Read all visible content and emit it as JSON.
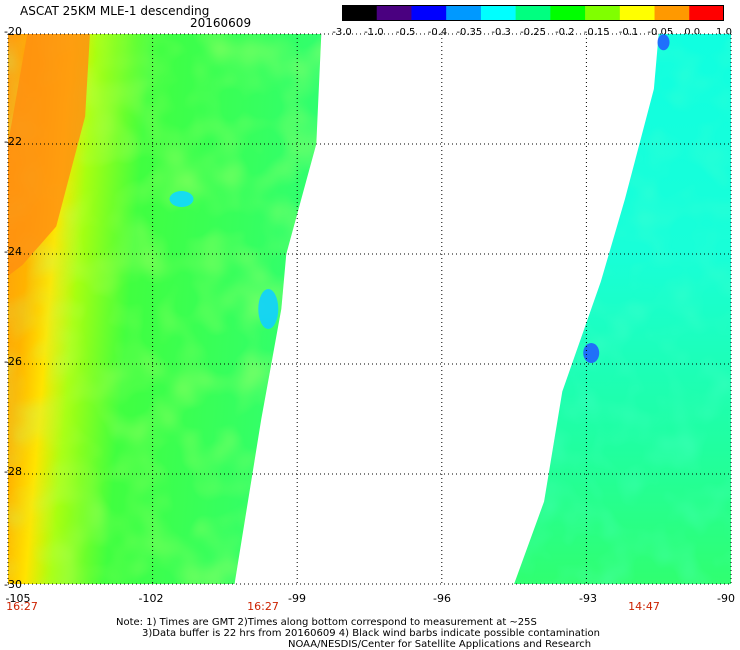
{
  "header": {
    "title": "ASCAT 25KM MLE-1 descending",
    "date": "20160609"
  },
  "colorbar": {
    "tick_labels": [
      "-3.0",
      "-1.0",
      "-0.5",
      "-0.4",
      "-0.35",
      "-0.3",
      "-0.25",
      "-0.2",
      "-0.15",
      "-0.1",
      "-0.05",
      "0.0",
      "1.0"
    ],
    "colors": [
      "#000000",
      "#4a0080",
      "#0000ff",
      "#0099ff",
      "#00ffff",
      "#00ff80",
      "#00ff00",
      "#80ff00",
      "#ffff00",
      "#ff9900",
      "#ff0000"
    ]
  },
  "map": {
    "lat_labels": [
      "-20",
      "-22",
      "-24",
      "-26",
      "-28",
      "-30"
    ],
    "lon_labels": [
      "-105",
      "-102",
      "-99",
      "-96",
      "-93",
      "-90"
    ],
    "lat_range": [
      -30,
      -20
    ],
    "lon_range": [
      -105,
      -90
    ],
    "time_labels": [
      "16:27",
      "16:27",
      "14:47"
    ],
    "swaths": [
      {
        "name": "west",
        "lon_west": -105,
        "lon_east_north": -98.5,
        "lon_east_south": -100.3
      },
      {
        "name": "east",
        "lon_east": -90,
        "lon_west_north": -91.5,
        "lon_west_south": -94.5
      }
    ]
  },
  "notes": {
    "line1": "Note: 1) Times are GMT  2)Times along bottom correspond to measurement at ~25S",
    "line2": "3)Data buffer is 22 hrs from 20160609  4) Black wind barbs indicate possible contamination",
    "line3": "NOAA/NESDIS/Center for Satellite Applications and Research"
  }
}
